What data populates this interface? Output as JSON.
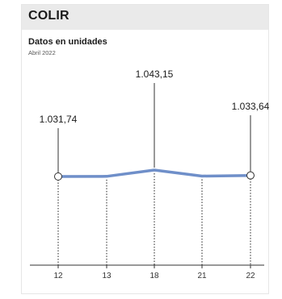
{
  "header": {
    "title": "COLIR",
    "subtitle": "Datos en unidades",
    "date": "Abril 2022"
  },
  "colors": {
    "line": "#6f8fc9",
    "header_bg": "#eaeaea",
    "text": "#1b1b1b"
  },
  "chart_data": {
    "type": "line",
    "title": "COLIR",
    "subtitle": "Datos en unidades",
    "categories": [
      "12",
      "13",
      "18",
      "21",
      "22"
    ],
    "series": [
      {
        "values": [
          1031.74,
          1032.0,
          1043.15,
          1032.5,
          1033.64
        ]
      }
    ],
    "annotations": [
      {
        "category": "12",
        "label": "1.031,74"
      },
      {
        "category": "18",
        "label": "1.043,15"
      },
      {
        "category": "22",
        "label": "1.033,64"
      }
    ],
    "grid": false,
    "legend": "none"
  }
}
